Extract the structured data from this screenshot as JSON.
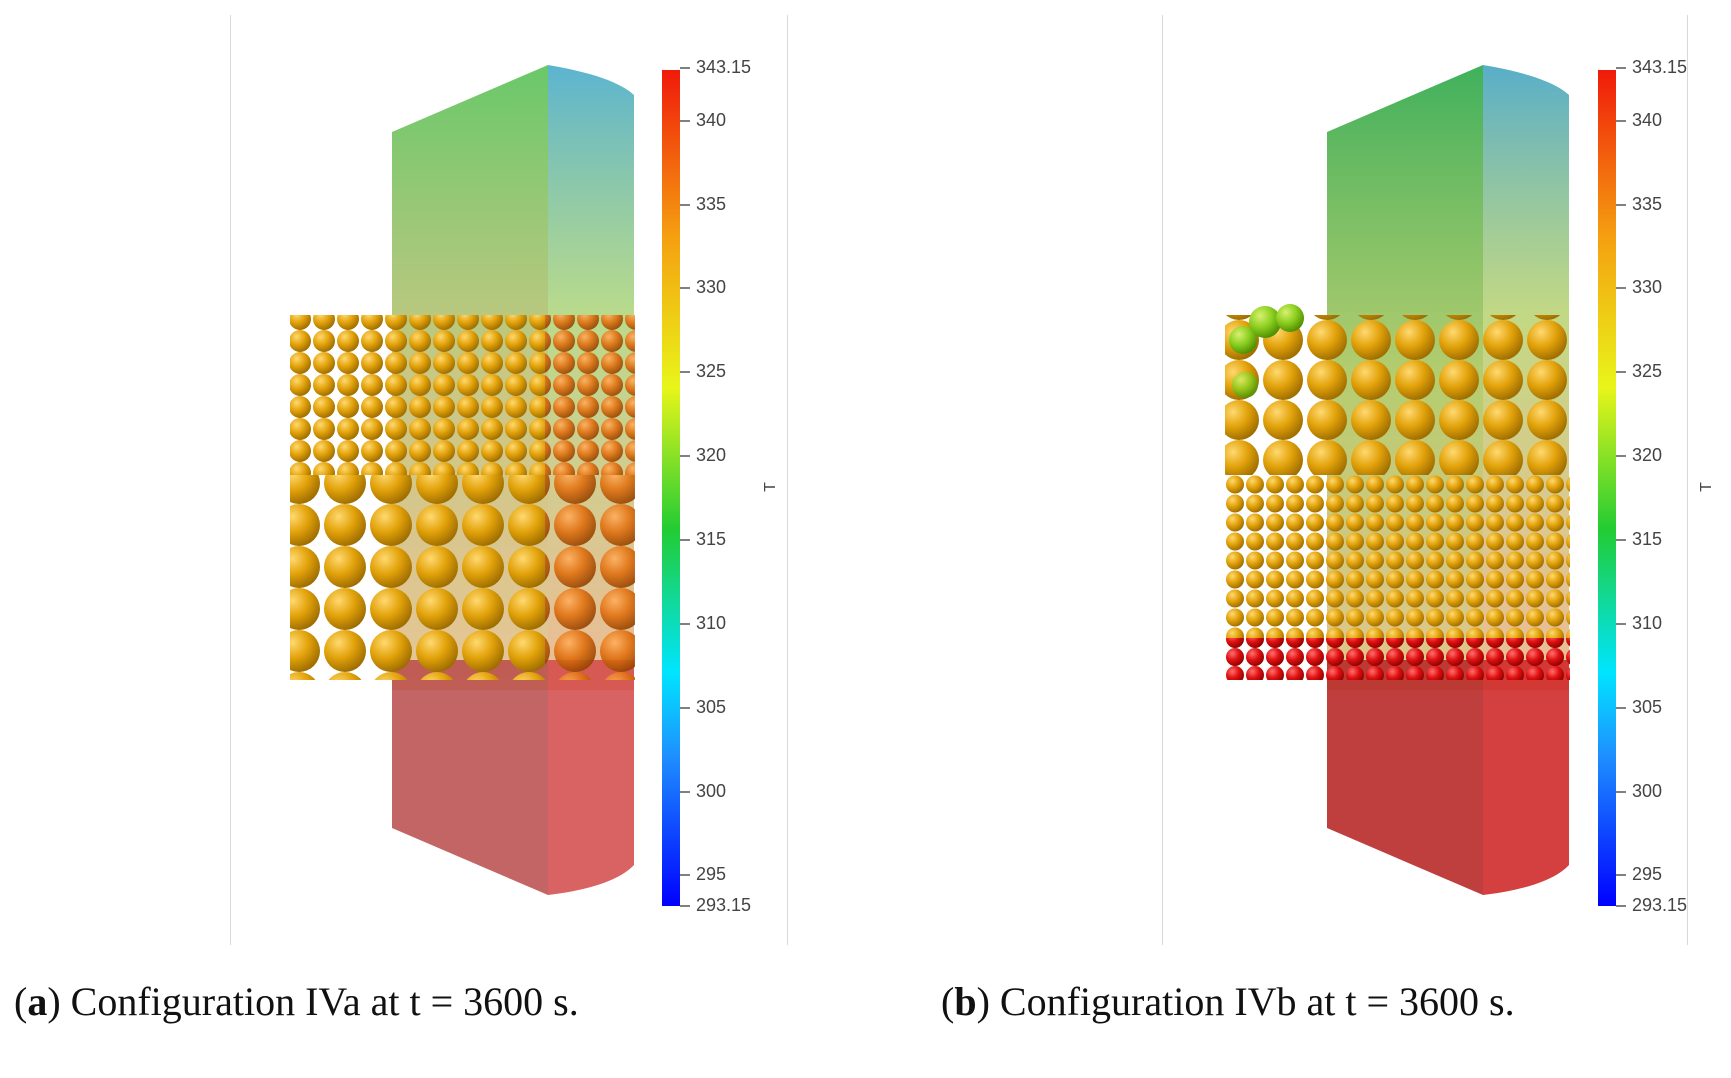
{
  "colorbar": {
    "min_label": "293.15",
    "max_label": "343.15",
    "ticks": [
      "340",
      "335",
      "330",
      "325",
      "320",
      "315",
      "310",
      "305",
      "300",
      "295"
    ],
    "title": "T"
  },
  "panels": [
    {
      "letter": "a",
      "caption": ") Configuration IVa at t = 3600 s."
    },
    {
      "letter": "b",
      "caption": ") Configuration IVb at t = 3600 s."
    }
  ],
  "colors": {
    "hot": "#e8251a",
    "warm": "#e8a611",
    "mid": "#f5ec18",
    "cool": "#33cc44",
    "cold": "#1a2cff"
  }
}
